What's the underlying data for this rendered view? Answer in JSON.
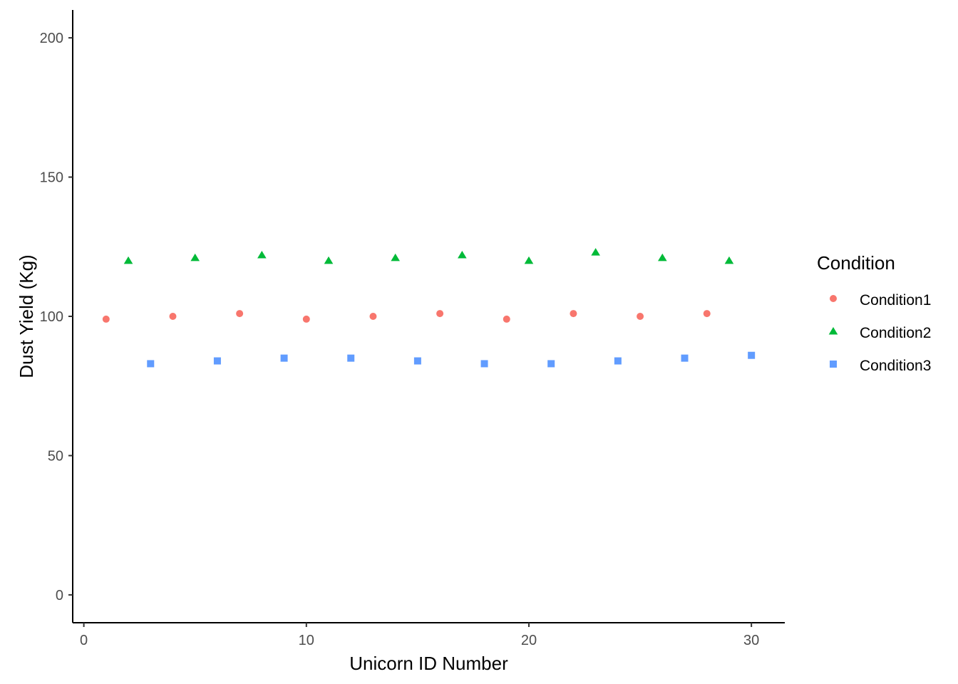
{
  "chart_data": {
    "type": "scatter",
    "xlabel": "Unicorn ID Number",
    "ylabel": "Dust Yield (Kg)",
    "xlim": [
      -0.5,
      31.5
    ],
    "ylim": [
      -10,
      210
    ],
    "x_ticks": [
      0,
      10,
      20,
      30
    ],
    "y_ticks": [
      0,
      50,
      100,
      150,
      200
    ],
    "grid": false,
    "legend": {
      "title": "Condition",
      "placement": "right"
    },
    "series": [
      {
        "name": "Condition1",
        "shape": "circle",
        "color": "#F8766D",
        "x": [
          1,
          4,
          7,
          10,
          13,
          16,
          19,
          22,
          25,
          28
        ],
        "y": [
          99,
          100,
          101,
          99,
          100,
          101,
          99,
          101,
          100,
          101
        ]
      },
      {
        "name": "Condition2",
        "shape": "triangle",
        "color": "#00BA38",
        "x": [
          2,
          5,
          8,
          11,
          14,
          17,
          20,
          23,
          26,
          29
        ],
        "y": [
          120,
          121,
          122,
          120,
          121,
          122,
          120,
          123,
          121,
          120
        ]
      },
      {
        "name": "Condition3",
        "shape": "square",
        "color": "#619CFF",
        "x": [
          3,
          6,
          9,
          12,
          15,
          18,
          21,
          24,
          27,
          30
        ],
        "y": [
          83,
          84,
          85,
          85,
          84,
          83,
          83,
          84,
          85,
          86
        ]
      }
    ]
  }
}
